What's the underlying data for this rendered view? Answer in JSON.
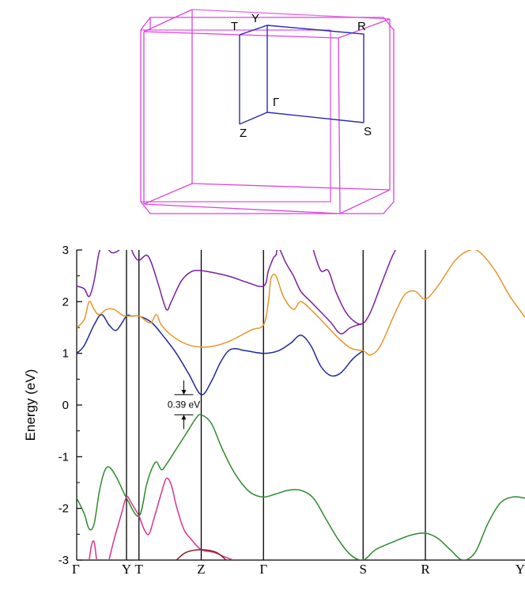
{
  "brillouin_zone": {
    "labels": {
      "T": "T",
      "Y": "Y",
      "R": "R",
      "Gamma": "Γ",
      "Z": "Z",
      "S": "S"
    },
    "colors": {
      "cell": "#dd44dd",
      "path": "#2a2ab8"
    }
  },
  "chart_data": {
    "type": "line",
    "title": "",
    "xlabel": "",
    "ylabel": "Energy (eV)",
    "ylim": [
      -3,
      3
    ],
    "yticks": [
      3,
      2,
      1,
      0,
      -1,
      -2,
      -3
    ],
    "ytick_labels": [
      "3",
      "2",
      "1",
      "0",
      "-1",
      "-2",
      "-3"
    ],
    "grid": false,
    "kpoints": [
      {
        "label": "Γ",
        "x": 0
      },
      {
        "label": "Y",
        "x": 0.2
      },
      {
        "label": "T",
        "x": 0.25
      },
      {
        "label": "Z",
        "x": 0.5
      },
      {
        "label": "Γ",
        "x": 0.75
      },
      {
        "label": "S",
        "x": 1.15
      },
      {
        "label": "R",
        "x": 1.4
      },
      {
        "label": "Y",
        "x": 1.8
      }
    ],
    "xlim": [
      0,
      1.8
    ],
    "annotation": {
      "text": "0.39 eV",
      "x": 0.5,
      "from": -0.19,
      "to": 0.2
    },
    "series": [
      {
        "color": "#1f2a9a",
        "points": [
          [
            0,
            1.0
          ],
          [
            0.03,
            1.15
          ],
          [
            0.07,
            1.55
          ],
          [
            0.1,
            1.75
          ],
          [
            0.13,
            1.55
          ],
          [
            0.16,
            1.45
          ],
          [
            0.2,
            1.72
          ],
          [
            0.22,
            1.72
          ],
          [
            0.25,
            1.72
          ],
          [
            0.3,
            1.6
          ],
          [
            0.35,
            1.32
          ],
          [
            0.4,
            1.0
          ],
          [
            0.45,
            0.6
          ],
          [
            0.5,
            0.2
          ],
          [
            0.54,
            0.45
          ],
          [
            0.58,
            0.85
          ],
          [
            0.62,
            1.08
          ],
          [
            0.68,
            1.05
          ],
          [
            0.75,
            1.0
          ],
          [
            0.81,
            1.05
          ],
          [
            0.86,
            1.2
          ],
          [
            0.9,
            1.35
          ],
          [
            0.94,
            1.15
          ],
          [
            0.98,
            0.75
          ],
          [
            1.02,
            0.57
          ],
          [
            1.06,
            0.62
          ],
          [
            1.11,
            0.9
          ],
          [
            1.15,
            1.05
          ]
        ]
      },
      {
        "color": "#e8962a",
        "points": [
          [
            0,
            1.5
          ],
          [
            0.03,
            1.65
          ],
          [
            0.05,
            2.0
          ],
          [
            0.07,
            1.85
          ],
          [
            0.09,
            1.75
          ],
          [
            0.12,
            1.85
          ],
          [
            0.15,
            1.85
          ],
          [
            0.18,
            1.75
          ],
          [
            0.2,
            1.72
          ],
          [
            0.25,
            1.72
          ],
          [
            0.28,
            1.62
          ],
          [
            0.3,
            1.6
          ],
          [
            0.32,
            1.75
          ],
          [
            0.34,
            1.55
          ],
          [
            0.38,
            1.35
          ],
          [
            0.44,
            1.18
          ],
          [
            0.5,
            1.12
          ],
          [
            0.56,
            1.15
          ],
          [
            0.62,
            1.25
          ],
          [
            0.7,
            1.45
          ],
          [
            0.75,
            1.55
          ],
          [
            0.77,
            2.0
          ],
          [
            0.78,
            2.45
          ],
          [
            0.8,
            2.5
          ],
          [
            0.83,
            2.1
          ],
          [
            0.87,
            1.85
          ],
          [
            0.9,
            2.0
          ],
          [
            0.95,
            1.8
          ],
          [
            1.0,
            1.55
          ],
          [
            1.05,
            1.3
          ],
          [
            1.1,
            1.1
          ],
          [
            1.15,
            1.05
          ],
          [
            1.18,
            0.97
          ],
          [
            1.22,
            1.15
          ],
          [
            1.28,
            1.8
          ],
          [
            1.32,
            2.15
          ],
          [
            1.36,
            2.2
          ],
          [
            1.4,
            2.05
          ],
          [
            1.45,
            2.3
          ],
          [
            1.52,
            2.8
          ],
          [
            1.58,
            3.0
          ],
          [
            1.62,
            2.95
          ],
          [
            1.68,
            2.6
          ],
          [
            1.74,
            2.1
          ],
          [
            1.8,
            1.7
          ]
        ]
      },
      {
        "color": "#7a1fa0",
        "points": [
          [
            0,
            2.3
          ],
          [
            0.03,
            2.25
          ],
          [
            0.05,
            2.1
          ],
          [
            0.07,
            2.4
          ],
          [
            0.09,
            2.95
          ],
          [
            0.11,
            3.1
          ],
          [
            0.14,
            2.95
          ],
          [
            0.17,
            3.0
          ],
          [
            0.2,
            3.2
          ],
          [
            0.23,
            2.9
          ],
          [
            0.25,
            2.8
          ],
          [
            0.28,
            2.9
          ],
          [
            0.3,
            2.75
          ],
          [
            0.33,
            2.3
          ],
          [
            0.36,
            1.85
          ],
          [
            0.38,
            2.0
          ],
          [
            0.42,
            2.4
          ],
          [
            0.46,
            2.58
          ],
          [
            0.5,
            2.6
          ],
          [
            0.56,
            2.55
          ],
          [
            0.62,
            2.48
          ],
          [
            0.68,
            2.38
          ],
          [
            0.75,
            2.3
          ],
          [
            0.77,
            2.6
          ],
          [
            0.79,
            2.85
          ],
          [
            0.8,
            2.9
          ],
          [
            0.81,
            3.05
          ],
          [
            0.84,
            2.75
          ],
          [
            0.87,
            2.5
          ],
          [
            0.9,
            2.2
          ],
          [
            0.94,
            2.0
          ],
          [
            0.98,
            1.8
          ],
          [
            1.02,
            1.6
          ],
          [
            1.06,
            1.38
          ],
          [
            1.1,
            1.5
          ],
          [
            1.15,
            1.58
          ]
        ]
      },
      {
        "color": "#7a1fa0",
        "points": [
          [
            0.95,
            3.0
          ],
          [
            0.98,
            2.6
          ],
          [
            1.01,
            2.6
          ],
          [
            1.04,
            2.2
          ],
          [
            1.08,
            1.8
          ],
          [
            1.12,
            1.6
          ],
          [
            1.15,
            1.58
          ],
          [
            1.18,
            1.8
          ],
          [
            1.22,
            2.3
          ],
          [
            1.26,
            2.8
          ],
          [
            1.28,
            3.0
          ]
        ]
      },
      {
        "color": "#2e8b2e",
        "points": [
          [
            0,
            -1.8
          ],
          [
            0.03,
            -2.1
          ],
          [
            0.05,
            -2.4
          ],
          [
            0.07,
            -2.3
          ],
          [
            0.09,
            -1.7
          ],
          [
            0.11,
            -1.3
          ],
          [
            0.13,
            -1.2
          ],
          [
            0.16,
            -1.4
          ],
          [
            0.2,
            -1.8
          ],
          [
            0.25,
            -2.15
          ],
          [
            0.28,
            -1.55
          ],
          [
            0.3,
            -1.25
          ],
          [
            0.32,
            -1.1
          ],
          [
            0.34,
            -1.25
          ],
          [
            0.36,
            -1.15
          ],
          [
            0.4,
            -0.85
          ],
          [
            0.44,
            -0.55
          ],
          [
            0.48,
            -0.25
          ],
          [
            0.5,
            -0.19
          ],
          [
            0.54,
            -0.35
          ],
          [
            0.58,
            -0.8
          ],
          [
            0.62,
            -1.2
          ],
          [
            0.66,
            -1.5
          ],
          [
            0.7,
            -1.7
          ],
          [
            0.75,
            -1.78
          ],
          [
            0.8,
            -1.72
          ],
          [
            0.85,
            -1.65
          ],
          [
            0.9,
            -1.65
          ],
          [
            0.95,
            -1.8
          ],
          [
            1.0,
            -2.2
          ],
          [
            1.05,
            -2.6
          ],
          [
            1.1,
            -2.9
          ],
          [
            1.15,
            -3.0
          ],
          [
            1.2,
            -2.8
          ],
          [
            1.27,
            -2.65
          ],
          [
            1.34,
            -2.52
          ],
          [
            1.4,
            -2.48
          ],
          [
            1.45,
            -2.58
          ],
          [
            1.5,
            -2.8
          ],
          [
            1.55,
            -3.0
          ],
          [
            1.6,
            -2.85
          ],
          [
            1.65,
            -2.3
          ],
          [
            1.7,
            -1.9
          ],
          [
            1.75,
            -1.78
          ],
          [
            1.8,
            -1.8
          ]
        ]
      },
      {
        "color": "#d6338e",
        "points": [
          [
            0.05,
            -3.0
          ],
          [
            0.06,
            -2.7
          ],
          [
            0.07,
            -2.65
          ],
          [
            0.08,
            -3.0
          ]
        ]
      },
      {
        "color": "#d6338e",
        "points": [
          [
            0.13,
            -3.0
          ],
          [
            0.15,
            -2.6
          ],
          [
            0.18,
            -2.1
          ],
          [
            0.2,
            -1.78
          ],
          [
            0.22,
            -1.9
          ],
          [
            0.25,
            -2.15
          ],
          [
            0.27,
            -2.4
          ],
          [
            0.29,
            -2.5
          ],
          [
            0.31,
            -2.2
          ],
          [
            0.34,
            -1.7
          ],
          [
            0.36,
            -1.42
          ],
          [
            0.38,
            -1.55
          ],
          [
            0.4,
            -1.95
          ],
          [
            0.43,
            -2.4
          ],
          [
            0.46,
            -2.6
          ],
          [
            0.5,
            -2.8
          ],
          [
            0.55,
            -2.85
          ],
          [
            0.6,
            -2.95
          ],
          [
            0.63,
            -3.0
          ]
        ]
      },
      {
        "color": "#8b1a1a",
        "points": [
          [
            0.4,
            -3.0
          ],
          [
            0.44,
            -2.85
          ],
          [
            0.5,
            -2.8
          ],
          [
            0.56,
            -2.85
          ],
          [
            0.6,
            -3.0
          ]
        ]
      }
    ]
  }
}
